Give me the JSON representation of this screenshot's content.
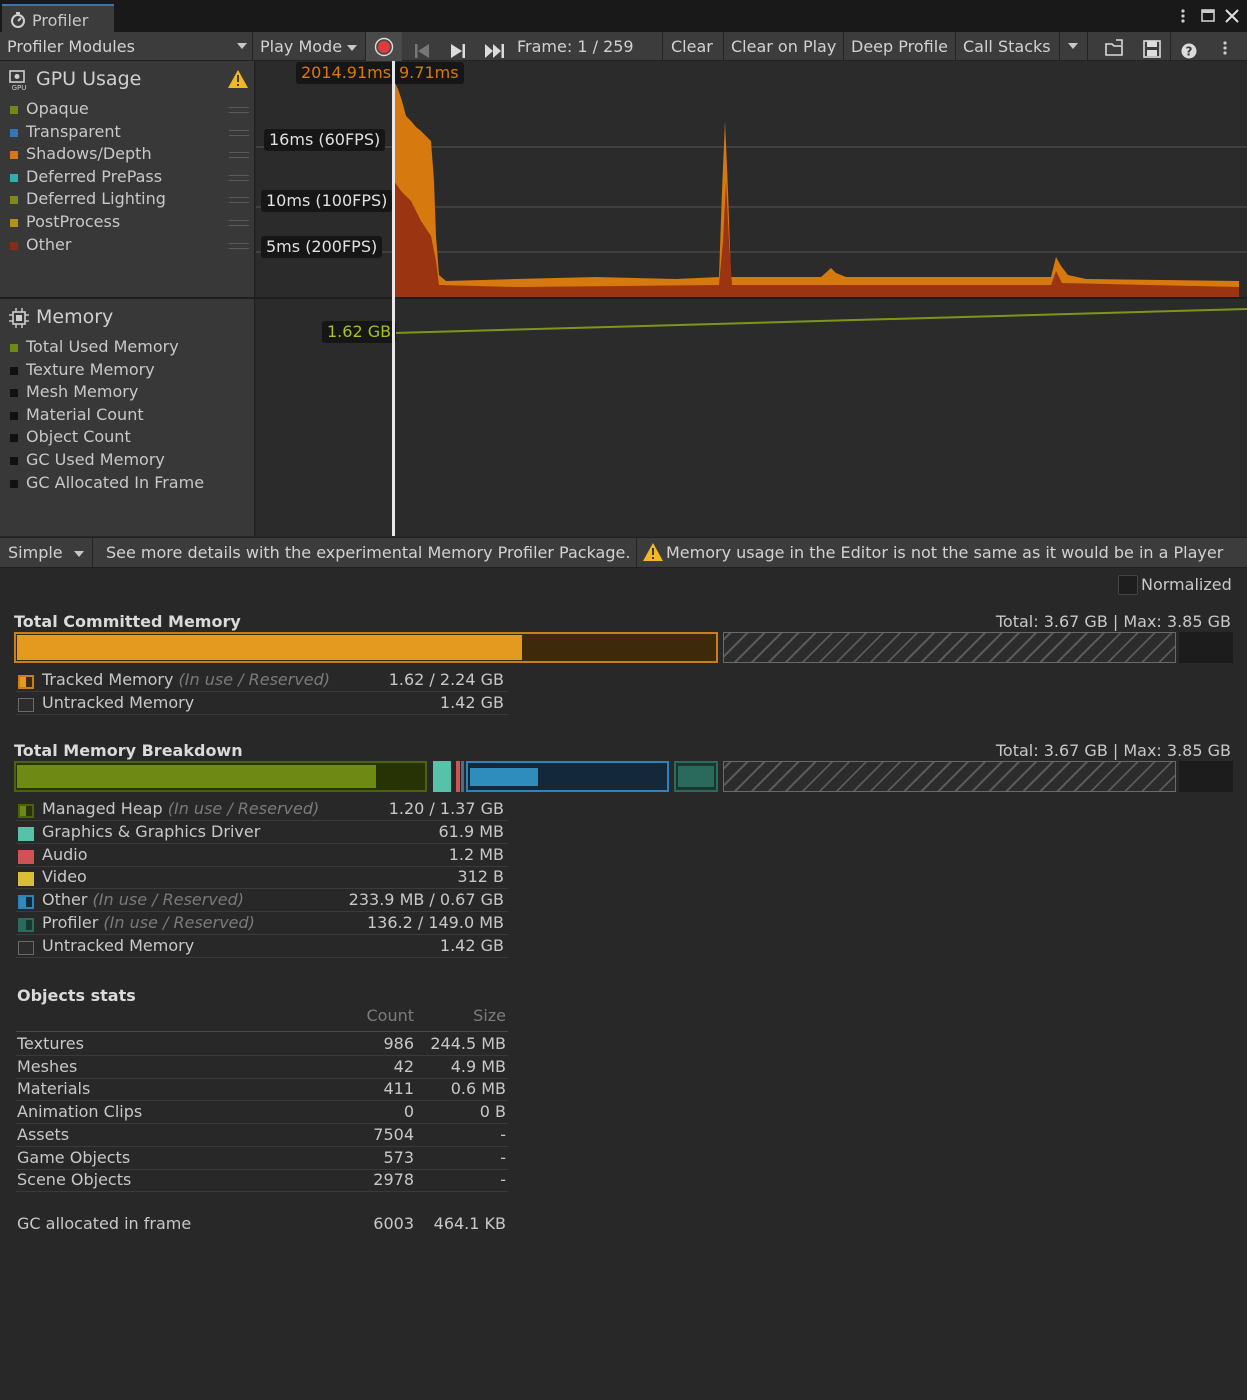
{
  "window": {
    "tab_title": "Profiler"
  },
  "toolbar": {
    "modules_label": "Profiler Modules",
    "play_mode_label": "Play Mode",
    "frame_label": "Frame: 1 / 259",
    "clear_label": "Clear",
    "clear_on_play_label": "Clear on Play",
    "deep_profile_label": "Deep Profile",
    "call_stacks_label": "Call Stacks"
  },
  "gpu_module": {
    "title": "GPU Usage",
    "legend": [
      {
        "label": "Opaque",
        "color": "#6f8a14"
      },
      {
        "label": "Transparent",
        "color": "#2f77b8"
      },
      {
        "label": "Shadows/Depth",
        "color": "#d4781a"
      },
      {
        "label": "Deferred PrePass",
        "color": "#2ab2b2"
      },
      {
        "label": "Deferred Lighting",
        "color": "#7d8a1a"
      },
      {
        "label": "PostProcess",
        "color": "#b59314"
      },
      {
        "label": "Other",
        "color": "#8a2b14"
      }
    ],
    "selected_time": "2014.91ms",
    "frame_time": "9.71ms",
    "lines": [
      "16ms (60FPS)",
      "10ms (100FPS)",
      "5ms (200FPS)"
    ]
  },
  "memory_module": {
    "title": "Memory",
    "legend": [
      {
        "label": "Total Used Memory",
        "color": "#6f8a14"
      },
      {
        "label": "Texture Memory",
        "color": "#111111"
      },
      {
        "label": "Mesh Memory",
        "color": "#111111"
      },
      {
        "label": "Material Count",
        "color": "#111111"
      },
      {
        "label": "Object Count",
        "color": "#111111"
      },
      {
        "label": "GC Used Memory",
        "color": "#111111"
      },
      {
        "label": "GC Allocated In Frame",
        "color": "#111111"
      }
    ],
    "value_label": "1.62 GB"
  },
  "subbar": {
    "view_mode": "Simple",
    "info_text": "See more details with the experimental Memory Profiler Package.",
    "warning_text": "Memory usage in the Editor is not the same as it would be in a Player"
  },
  "details": {
    "normalized_label": "Normalized",
    "committed": {
      "title": "Total Committed Memory",
      "totals": "Total: 3.67 GB | Max: 3.85 GB",
      "rows": [
        {
          "name": "Tracked Memory",
          "hint": "(In use / Reserved)",
          "value": "1.62 / 2.24 GB"
        },
        {
          "name": "Untracked Memory",
          "hint": "",
          "value": "1.42 GB"
        }
      ],
      "tracked_in_use_fraction": 0.723
    },
    "breakdown": {
      "title": "Total Memory Breakdown",
      "totals": "Total: 3.67 GB | Max: 3.85 GB",
      "rows": [
        {
          "name": "Managed Heap",
          "hint": "(In use / Reserved)",
          "value": "1.20 / 1.37 GB"
        },
        {
          "name": "Graphics & Graphics Driver",
          "hint": "",
          "value": "61.9 MB"
        },
        {
          "name": "Audio",
          "hint": "",
          "value": "1.2 MB"
        },
        {
          "name": "Video",
          "hint": "",
          "value": "312 B"
        },
        {
          "name": "Other",
          "hint": "(In use / Reserved)",
          "value": "233.9 MB / 0.67 GB"
        },
        {
          "name": "Profiler",
          "hint": "(In use / Reserved)",
          "value": "136.2 / 149.0 MB"
        },
        {
          "name": "Untracked Memory",
          "hint": "",
          "value": "1.42 GB"
        }
      ]
    },
    "objects": {
      "title": "Objects stats",
      "col_count": "Count",
      "col_size": "Size",
      "rows": [
        {
          "name": "Textures",
          "count": "986",
          "size": "244.5 MB"
        },
        {
          "name": "Meshes",
          "count": "42",
          "size": "4.9 MB"
        },
        {
          "name": "Materials",
          "count": "411",
          "size": "0.6 MB"
        },
        {
          "name": "Animation Clips",
          "count": "0",
          "size": "0 B"
        },
        {
          "name": "Assets",
          "count": "7504",
          "size": "-"
        },
        {
          "name": "Game Objects",
          "count": "573",
          "size": "-"
        },
        {
          "name": "Scene Objects",
          "count": "2978",
          "size": "-"
        }
      ],
      "gc": {
        "name": "GC allocated in frame",
        "count": "6003",
        "size": "464.1 KB"
      }
    }
  }
}
